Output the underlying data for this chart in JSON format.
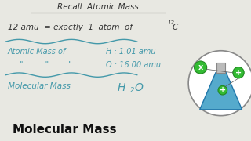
{
  "whiteboard_color": "#e8e8e2",
  "bottom_bar_color": "#f0e020",
  "bottom_bar_text": "Molecular Mass",
  "bottom_bar_text_color": "#111111",
  "title": "Recall  Atomic Mass",
  "title_color": "#333333",
  "dark_color": "#333333",
  "teal_color": "#4499aa",
  "line1_text": "12 amu  = exactly  1  atom  of",
  "superscript": "12",
  "element_C": "C",
  "atomic_mass_of": "Atomic Mass of",
  "h_label": "H : 1.01 amu",
  "o_label": "O : 16.00 amu",
  "ditto": "\"         \"        \"",
  "mol_mass": "Molecular Mass",
  "mol_h": "H",
  "mol_sub": "2",
  "mol_o": "O",
  "flask_color": "#55aacc",
  "flask_edge": "#2277aa",
  "bubble_color": "#33bb33",
  "bubble_edge": "#228822",
  "circle_bg": "#ffffff",
  "circle_edge": "#888888"
}
